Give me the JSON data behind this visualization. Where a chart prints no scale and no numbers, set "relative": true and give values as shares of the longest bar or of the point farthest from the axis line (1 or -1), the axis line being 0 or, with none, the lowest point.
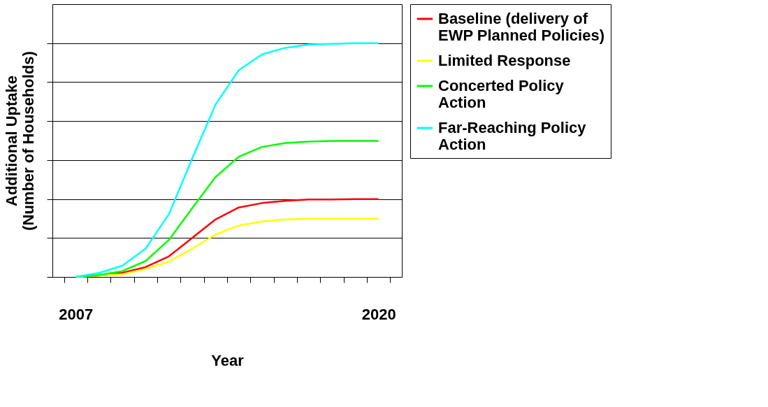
{
  "chart_data": {
    "type": "line",
    "relative": true,
    "xlabel": "Year",
    "ylabel": "Additional Uptake (Number of Households)",
    "categories": [
      "2007",
      null,
      null,
      null,
      null,
      null,
      null,
      null,
      null,
      null,
      null,
      null,
      null,
      "2020"
    ],
    "series": [
      {
        "name": "Baseline (delivery of EWP Planned Policies)",
        "color": "#ff0000",
        "values": [
          0,
          0.006,
          0.017,
          0.042,
          0.088,
          0.167,
          0.246,
          0.297,
          0.316,
          0.325,
          0.331,
          0.331,
          0.333,
          0.333
        ]
      },
      {
        "name": "Limited Response",
        "color": "#ffff00",
        "values": [
          0,
          0.006,
          0.011,
          0.034,
          0.065,
          0.121,
          0.181,
          0.22,
          0.237,
          0.246,
          0.249,
          0.249,
          0.249,
          0.249
        ]
      },
      {
        "name": "Concerted Policy Action",
        "color": "#00ff00",
        "values": [
          0,
          0.008,
          0.025,
          0.068,
          0.158,
          0.294,
          0.427,
          0.514,
          0.556,
          0.573,
          0.579,
          0.582,
          0.582,
          0.582
        ]
      },
      {
        "name": "Far-Reaching Policy Action",
        "color": "#00ffff",
        "values": [
          0,
          0.017,
          0.048,
          0.121,
          0.268,
          0.506,
          0.737,
          0.884,
          0.952,
          0.98,
          0.994,
          0.997,
          1,
          1
        ]
      }
    ],
    "grid": "y",
    "legend": "right",
    "marker": "none",
    "line_style": "solid"
  }
}
